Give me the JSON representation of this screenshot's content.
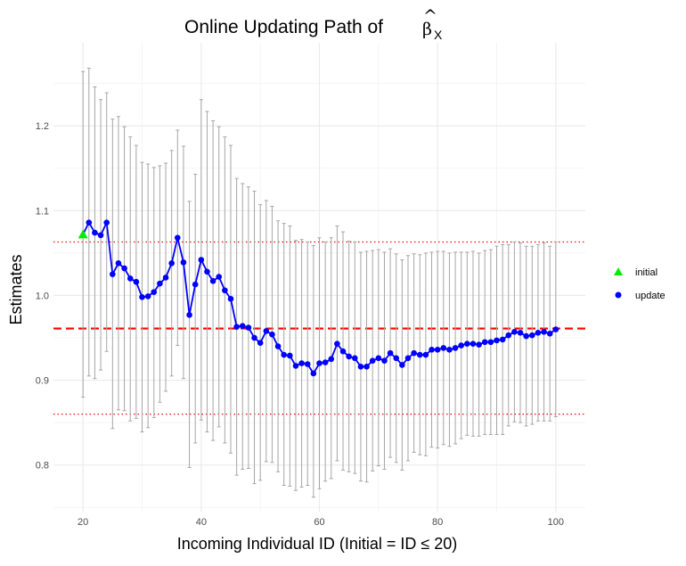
{
  "chart_data": {
    "type": "line",
    "title": "Online Updating Path of",
    "title_symbol": "β",
    "title_symbol_accent": "^",
    "title_subscript": "X",
    "xlabel": "Incoming Individual ID (Initial = ID ≤ 20)",
    "ylabel": "Estimates",
    "xlim": [
      15,
      105
    ],
    "ylim": [
      0.745,
      1.298
    ],
    "x_ticks": [
      20,
      40,
      60,
      80,
      100
    ],
    "y_ticks": [
      0.8,
      0.9,
      1.0,
      1.1,
      1.2
    ],
    "y_tick_labels": [
      "0.8",
      "0.9",
      "1.0",
      "1.1",
      "1.2"
    ],
    "grid": true,
    "legend_position": "right",
    "reference_lines": {
      "true_value": 0.961,
      "lower_bound": 0.86,
      "upper_bound": 1.063,
      "dashed_color": "#ff0000",
      "dotted_color": "#ff0000"
    },
    "x": [
      20,
      21,
      22,
      23,
      24,
      25,
      26,
      27,
      28,
      29,
      30,
      31,
      32,
      33,
      34,
      35,
      36,
      37,
      38,
      39,
      40,
      41,
      42,
      43,
      44,
      45,
      46,
      47,
      48,
      49,
      50,
      51,
      52,
      53,
      54,
      55,
      56,
      57,
      58,
      59,
      60,
      61,
      62,
      63,
      64,
      65,
      66,
      67,
      68,
      69,
      70,
      71,
      72,
      73,
      74,
      75,
      76,
      77,
      78,
      79,
      80,
      81,
      82,
      83,
      84,
      85,
      86,
      87,
      88,
      89,
      90,
      91,
      92,
      93,
      94,
      95,
      96,
      97,
      98,
      99,
      100
    ],
    "estimates": [
      1.072,
      1.086,
      1.074,
      1.071,
      1.086,
      1.025,
      1.038,
      1.032,
      1.02,
      1.016,
      0.998,
      0.999,
      1.004,
      1.014,
      1.021,
      1.038,
      1.068,
      1.039,
      0.977,
      1.013,
      1.042,
      1.028,
      1.017,
      1.022,
      1.006,
      0.996,
      0.963,
      0.964,
      0.962,
      0.95,
      0.944,
      0.958,
      0.954,
      0.94,
      0.93,
      0.929,
      0.917,
      0.92,
      0.919,
      0.908,
      0.92,
      0.921,
      0.925,
      0.943,
      0.934,
      0.928,
      0.926,
      0.916,
      0.916,
      0.923,
      0.926,
      0.923,
      0.932,
      0.926,
      0.918,
      0.926,
      0.932,
      0.93,
      0.93,
      0.936,
      0.936,
      0.938,
      0.936,
      0.938,
      0.941,
      0.943,
      0.943,
      0.942,
      0.945,
      0.945,
      0.947,
      0.948,
      0.953,
      0.957,
      0.956,
      0.952,
      0.953,
      0.956,
      0.957,
      0.955,
      0.96
    ],
    "upper": [
      1.264,
      1.268,
      1.246,
      1.231,
      1.239,
      1.208,
      1.211,
      1.199,
      1.187,
      1.177,
      1.157,
      1.155,
      1.151,
      1.153,
      1.156,
      1.171,
      1.195,
      1.176,
      1.111,
      1.143,
      1.231,
      1.217,
      1.206,
      1.199,
      1.187,
      1.177,
      1.138,
      1.132,
      1.128,
      1.123,
      1.107,
      1.112,
      1.105,
      1.088,
      1.085,
      1.082,
      1.065,
      1.066,
      1.063,
      1.059,
      1.068,
      1.063,
      1.068,
      1.082,
      1.075,
      1.064,
      1.063,
      1.051,
      1.052,
      1.053,
      1.054,
      1.051,
      1.055,
      1.049,
      1.042,
      1.047,
      1.049,
      1.048,
      1.05,
      1.051,
      1.052,
      1.052,
      1.05,
      1.051,
      1.051,
      1.051,
      1.052,
      1.05,
      1.053,
      1.054,
      1.058,
      1.06,
      1.06,
      1.063,
      1.062,
      1.058,
      1.058,
      1.06,
      1.062,
      1.058,
      1.063
    ],
    "lower": [
      0.88,
      0.905,
      0.902,
      0.912,
      0.934,
      0.843,
      0.865,
      0.864,
      0.852,
      0.855,
      0.839,
      0.844,
      0.856,
      0.874,
      0.887,
      0.905,
      0.941,
      0.902,
      0.797,
      0.826,
      0.853,
      0.839,
      0.829,
      0.845,
      0.826,
      0.814,
      0.788,
      0.795,
      0.796,
      0.778,
      0.782,
      0.804,
      0.803,
      0.792,
      0.776,
      0.775,
      0.77,
      0.774,
      0.776,
      0.762,
      0.772,
      0.781,
      0.784,
      0.805,
      0.794,
      0.792,
      0.79,
      0.781,
      0.78,
      0.793,
      0.799,
      0.795,
      0.809,
      0.803,
      0.794,
      0.805,
      0.815,
      0.812,
      0.811,
      0.821,
      0.82,
      0.824,
      0.822,
      0.825,
      0.831,
      0.835,
      0.834,
      0.834,
      0.836,
      0.836,
      0.836,
      0.836,
      0.846,
      0.851,
      0.85,
      0.846,
      0.848,
      0.852,
      0.852,
      0.852,
      0.857
    ],
    "series": [
      {
        "name": "initial",
        "color": "#00ee00",
        "marker": "triangle"
      },
      {
        "name": "update",
        "color": "#0000ff",
        "marker": "circle",
        "line_color": "#0000ff"
      }
    ],
    "errorbar_color": "#a6a6a6"
  }
}
